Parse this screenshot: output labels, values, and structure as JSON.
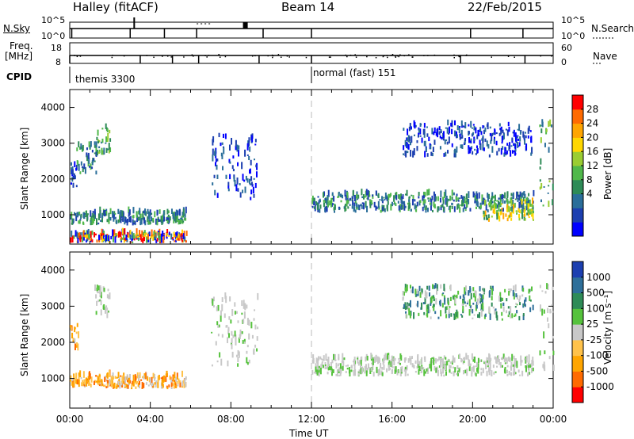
{
  "header": {
    "title": "Halley (fitACF)",
    "beam": "Beam 14",
    "date": "22/Feb/2015"
  },
  "status_panels": {
    "nsky_label": "N.Sky",
    "nsky_ticks": [
      "10^5",
      "10^0"
    ],
    "nsky_right_ticks": [
      "10^5",
      "10^0"
    ],
    "nsearch_label": "N.Search",
    "freq_label_1": "Freq.",
    "freq_label_2": "[MHz]",
    "freq_ticks": [
      "18",
      "8"
    ],
    "nave_ticks": [
      "60",
      "0"
    ],
    "nave_label": "Nave",
    "cpid_label": "CPID",
    "cpid_segments": [
      {
        "text": "themis 3300",
        "start_hr": 0,
        "end_hr": 12
      },
      {
        "text": "normal (fast) 151",
        "start_hr": 12,
        "end_hr": 24
      }
    ]
  },
  "chart_data": [
    {
      "type": "heatmap",
      "name": "power",
      "ylabel": "Slant Range [km]",
      "xlim": [
        0,
        24
      ],
      "ylim": [
        180,
        4500
      ],
      "yticks": [
        1000,
        2000,
        3000,
        4000
      ],
      "colorbar_label": "Power [dB]",
      "colorbar_ticks": [
        "28",
        "24",
        "20",
        "16",
        "12",
        "8",
        "4"
      ],
      "colorbar_colors": [
        "#0000ff",
        "#1c3fb0",
        "#2a6e9a",
        "#2e8b57",
        "#50b84a",
        "#9acd32",
        "#ffd700",
        "#ffa500",
        "#ff6a00",
        "#ff0000"
      ],
      "ranges": [
        [
          0,
          4
        ],
        [
          4,
          8
        ],
        [
          8,
          12
        ],
        [
          12,
          16
        ],
        [
          16,
          20
        ],
        [
          20,
          24
        ],
        [
          24,
          28
        ],
        [
          28,
          30
        ]
      ],
      "echo_regions": [
        {
          "t0": 0.0,
          "t1": 0.4,
          "r0": 1750,
          "r1": 2450,
          "level": "low"
        },
        {
          "t0": 0.3,
          "t1": 1.3,
          "r0": 2100,
          "r1": 2900,
          "level": "low-mid"
        },
        {
          "t0": 1.2,
          "t1": 2.0,
          "r0": 2650,
          "r1": 3450,
          "level": "mid"
        },
        {
          "t0": 0.0,
          "t1": 5.8,
          "r0": 700,
          "r1": 1050,
          "level": "low-mid"
        },
        {
          "t0": 0.0,
          "t1": 5.8,
          "r0": 200,
          "r1": 450,
          "level": "mixed"
        },
        {
          "t0": 7.0,
          "t1": 9.3,
          "r0": 1300,
          "r1": 3200,
          "level": "low"
        },
        {
          "t0": 12.0,
          "t1": 23.0,
          "r0": 1050,
          "r1": 1550,
          "level": "low-mid"
        },
        {
          "t0": 16.5,
          "t1": 23.0,
          "r0": 2600,
          "r1": 3500,
          "level": "low"
        },
        {
          "t0": 20.5,
          "t1": 23.0,
          "r0": 800,
          "r1": 1300,
          "level": "mid-high"
        },
        {
          "t0": 23.3,
          "t1": 24.0,
          "r0": 1200,
          "r1": 3600,
          "level": "mid"
        }
      ]
    },
    {
      "type": "heatmap",
      "name": "velocity",
      "xlabel": "Time UT",
      "ylabel": "Slant Range [km]",
      "xlim": [
        0,
        24
      ],
      "ylim": [
        180,
        4500
      ],
      "xticks": [
        "00:00",
        "04:00",
        "08:00",
        "12:00",
        "16:00",
        "20:00",
        "00:00"
      ],
      "yticks": [
        1000,
        2000,
        3000,
        4000
      ],
      "colorbar_label": "Velocity [m s⁻¹]",
      "colorbar_ticks": [
        "1000",
        "500",
        "100",
        "25",
        "-25",
        "-100",
        "-500",
        "-1000"
      ],
      "colorbar_colors": [
        "#1c3fb0",
        "#2e6f9a",
        "#2e8b57",
        "#55c23c",
        "#c8c8c8",
        "#ffc24a",
        "#ffa500",
        "#ff6a00",
        "#ff0000"
      ],
      "echo_regions": [
        {
          "t0": 0.0,
          "t1": 0.4,
          "r0": 1750,
          "r1": 2450,
          "level": "negative"
        },
        {
          "t0": 1.2,
          "t1": 2.0,
          "r0": 2650,
          "r1": 3450,
          "level": "ground"
        },
        {
          "t0": 0.0,
          "t1": 5.8,
          "r0": 700,
          "r1": 1050,
          "level": "negative"
        },
        {
          "t0": 7.0,
          "t1": 9.3,
          "r0": 1300,
          "r1": 3200,
          "level": "ground"
        },
        {
          "t0": 12.0,
          "t1": 23.0,
          "r0": 1050,
          "r1": 1550,
          "level": "ground"
        },
        {
          "t0": 16.5,
          "t1": 23.0,
          "r0": 2600,
          "r1": 3500,
          "level": "positive"
        },
        {
          "t0": 23.3,
          "t1": 24.0,
          "r0": 1200,
          "r1": 3600,
          "level": "ground"
        }
      ]
    }
  ]
}
